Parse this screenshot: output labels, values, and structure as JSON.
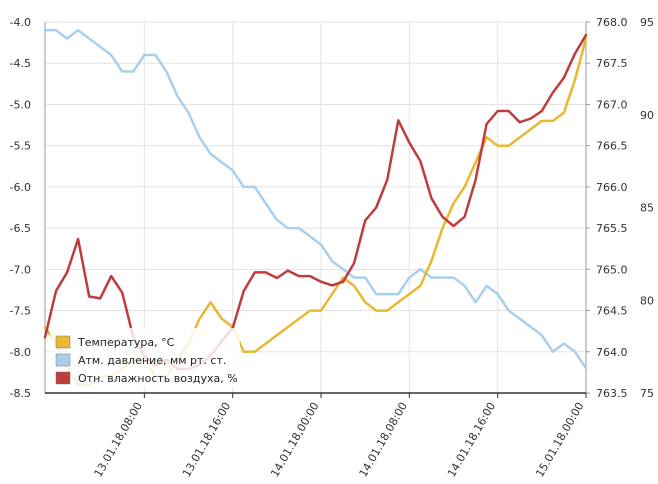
{
  "chart_data": {
    "type": "line",
    "title": "",
    "xlabel": "",
    "ylabel": "",
    "x_range": [
      "2018-01-12T23:00",
      "2018-01-15T00:00"
    ],
    "x_ticks": [
      {
        "t": "2018-01-13T08:00",
        "label": "13.01.18,08:00"
      },
      {
        "t": "2018-01-13T16:00",
        "label": "13.01.18,16:00"
      },
      {
        "t": "2018-01-14T00:00",
        "label": "14.01.18,00:00"
      },
      {
        "t": "2018-01-14T08:00",
        "label": "14.01.18,08:00"
      },
      {
        "t": "2018-01-14T16:00",
        "label": "14.01.18,16:00"
      },
      {
        "t": "2018-01-15T00:00",
        "label": "15.01.18,00:00"
      }
    ],
    "axes": {
      "temperature": {
        "side": "left",
        "ylim": [
          -8.5,
          -4.0
        ],
        "ticks": [
          "-4.0",
          "-4.5",
          "-5.0",
          "-5.5",
          "-6.0",
          "-6.5",
          "-7.0",
          "-7.5",
          "-8.0",
          "-8.5"
        ]
      },
      "pressure": {
        "side": "right-inner",
        "ylim": [
          763.5,
          768.0
        ],
        "ticks": [
          "768.0",
          "767.5",
          "767.0",
          "766.5",
          "766.0",
          "765.5",
          "765.0",
          "764.5",
          "764.0",
          "763.5"
        ]
      },
      "humidity": {
        "side": "right-outer",
        "ylim": [
          75,
          95
        ],
        "ticks": [
          "95",
          "90",
          "85",
          "80",
          "75"
        ]
      }
    },
    "grid": true,
    "legend_position": "bottom-left",
    "series": [
      {
        "key": "temperature",
        "name": "Температура, °C",
        "color": "#e8b830",
        "axis": "temperature",
        "points": [
          [
            "2018-01-12T23:00",
            -7.7
          ],
          [
            "2018-01-13T00:00",
            -7.9
          ],
          [
            "2018-01-13T01:00",
            -8.2
          ],
          [
            "2018-01-13T02:00",
            -8.4
          ],
          [
            "2018-01-13T03:00",
            -8.4
          ],
          [
            "2018-01-13T04:00",
            -8.3
          ],
          [
            "2018-01-13T05:00",
            -8.3
          ],
          [
            "2018-01-13T06:00",
            -8.2
          ],
          [
            "2018-01-13T07:00",
            -8.1
          ],
          [
            "2018-01-13T08:00",
            -8.1
          ],
          [
            "2018-01-13T09:00",
            -8.3
          ],
          [
            "2018-01-13T10:00",
            -8.3
          ],
          [
            "2018-01-13T11:00",
            -8.1
          ],
          [
            "2018-01-13T12:00",
            -7.9
          ],
          [
            "2018-01-13T13:00",
            -7.6
          ],
          [
            "2018-01-13T14:00",
            -7.4
          ],
          [
            "2018-01-13T15:00",
            -7.6
          ],
          [
            "2018-01-13T16:00",
            -7.7
          ],
          [
            "2018-01-13T17:00",
            -8.0
          ],
          [
            "2018-01-13T18:00",
            -8.0
          ],
          [
            "2018-01-13T19:00",
            -7.9
          ],
          [
            "2018-01-13T20:00",
            -7.8
          ],
          [
            "2018-01-13T21:00",
            -7.7
          ],
          [
            "2018-01-13T22:00",
            -7.6
          ],
          [
            "2018-01-13T23:00",
            -7.5
          ],
          [
            "2018-01-14T00:00",
            -7.5
          ],
          [
            "2018-01-14T01:00",
            -7.3
          ],
          [
            "2018-01-14T02:00",
            -7.1
          ],
          [
            "2018-01-14T03:00",
            -7.2
          ],
          [
            "2018-01-14T04:00",
            -7.4
          ],
          [
            "2018-01-14T05:00",
            -7.5
          ],
          [
            "2018-01-14T06:00",
            -7.5
          ],
          [
            "2018-01-14T07:00",
            -7.4
          ],
          [
            "2018-01-14T08:00",
            -7.3
          ],
          [
            "2018-01-14T09:00",
            -7.2
          ],
          [
            "2018-01-14T10:00",
            -6.9
          ],
          [
            "2018-01-14T11:00",
            -6.5
          ],
          [
            "2018-01-14T12:00",
            -6.2
          ],
          [
            "2018-01-14T13:00",
            -6.0
          ],
          [
            "2018-01-14T14:00",
            -5.7
          ],
          [
            "2018-01-14T15:00",
            -5.4
          ],
          [
            "2018-01-14T16:00",
            -5.5
          ],
          [
            "2018-01-14T17:00",
            -5.5
          ],
          [
            "2018-01-14T18:00",
            -5.4
          ],
          [
            "2018-01-14T19:00",
            -5.3
          ],
          [
            "2018-01-14T20:00",
            -5.2
          ],
          [
            "2018-01-14T21:00",
            -5.2
          ],
          [
            "2018-01-14T22:00",
            -5.1
          ],
          [
            "2018-01-14T23:00",
            -4.7
          ],
          [
            "2018-01-15T00:00",
            -4.2
          ]
        ]
      },
      {
        "key": "pressure",
        "name": "Атм. давление, мм рт. ст.",
        "color": "#a8d0ec",
        "axis": "pressure",
        "points": [
          [
            "2018-01-12T23:00",
            767.9
          ],
          [
            "2018-01-13T00:00",
            767.9
          ],
          [
            "2018-01-13T01:00",
            767.8
          ],
          [
            "2018-01-13T02:00",
            767.9
          ],
          [
            "2018-01-13T03:00",
            767.8
          ],
          [
            "2018-01-13T04:00",
            767.7
          ],
          [
            "2018-01-13T05:00",
            767.6
          ],
          [
            "2018-01-13T06:00",
            767.4
          ],
          [
            "2018-01-13T07:00",
            767.4
          ],
          [
            "2018-01-13T08:00",
            767.6
          ],
          [
            "2018-01-13T09:00",
            767.6
          ],
          [
            "2018-01-13T10:00",
            767.4
          ],
          [
            "2018-01-13T11:00",
            767.1
          ],
          [
            "2018-01-13T12:00",
            766.9
          ],
          [
            "2018-01-13T13:00",
            766.6
          ],
          [
            "2018-01-13T14:00",
            766.4
          ],
          [
            "2018-01-13T15:00",
            766.3
          ],
          [
            "2018-01-13T16:00",
            766.2
          ],
          [
            "2018-01-13T17:00",
            766.0
          ],
          [
            "2018-01-13T18:00",
            766.0
          ],
          [
            "2018-01-13T19:00",
            765.8
          ],
          [
            "2018-01-13T20:00",
            765.6
          ],
          [
            "2018-01-13T21:00",
            765.5
          ],
          [
            "2018-01-13T22:00",
            765.5
          ],
          [
            "2018-01-13T23:00",
            765.4
          ],
          [
            "2018-01-14T00:00",
            765.3
          ],
          [
            "2018-01-14T01:00",
            765.1
          ],
          [
            "2018-01-14T02:00",
            765.0
          ],
          [
            "2018-01-14T03:00",
            764.9
          ],
          [
            "2018-01-14T04:00",
            764.9
          ],
          [
            "2018-01-14T05:00",
            764.7
          ],
          [
            "2018-01-14T06:00",
            764.7
          ],
          [
            "2018-01-14T07:00",
            764.7
          ],
          [
            "2018-01-14T08:00",
            764.9
          ],
          [
            "2018-01-14T09:00",
            765.0
          ],
          [
            "2018-01-14T10:00",
            764.9
          ],
          [
            "2018-01-14T11:00",
            764.9
          ],
          [
            "2018-01-14T12:00",
            764.9
          ],
          [
            "2018-01-14T13:00",
            764.8
          ],
          [
            "2018-01-14T14:00",
            764.6
          ],
          [
            "2018-01-14T15:00",
            764.8
          ],
          [
            "2018-01-14T16:00",
            764.7
          ],
          [
            "2018-01-14T17:00",
            764.5
          ],
          [
            "2018-01-14T18:00",
            764.4
          ],
          [
            "2018-01-14T19:00",
            764.3
          ],
          [
            "2018-01-14T20:00",
            764.2
          ],
          [
            "2018-01-14T21:00",
            764.0
          ],
          [
            "2018-01-14T22:00",
            764.1
          ],
          [
            "2018-01-14T23:00",
            764.0
          ],
          [
            "2018-01-15T00:00",
            763.8
          ]
        ]
      },
      {
        "key": "humidity",
        "name": "Отн. влажность воздуха, %",
        "color": "#c03b3b",
        "axis": "humidity",
        "points": [
          [
            "2018-01-12T23:00",
            78.0
          ],
          [
            "2018-01-13T00:00",
            80.5
          ],
          [
            "2018-01-13T01:00",
            81.5
          ],
          [
            "2018-01-13T02:00",
            83.3
          ],
          [
            "2018-01-13T03:00",
            80.2
          ],
          [
            "2018-01-13T04:00",
            80.1
          ],
          [
            "2018-01-13T05:00",
            81.3
          ],
          [
            "2018-01-13T06:00",
            80.4
          ],
          [
            "2018-01-13T07:00",
            78.0
          ],
          [
            "2018-01-13T08:00",
            77.0
          ],
          [
            "2018-01-13T09:00",
            76.5
          ],
          [
            "2018-01-13T10:00",
            76.8
          ],
          [
            "2018-01-13T11:00",
            76.3
          ],
          [
            "2018-01-13T12:00",
            76.3
          ],
          [
            "2018-01-13T13:00",
            76.5
          ],
          [
            "2018-01-13T14:00",
            77.0
          ],
          [
            "2018-01-13T15:00",
            77.8
          ],
          [
            "2018-01-13T16:00",
            78.5
          ],
          [
            "2018-01-13T17:00",
            80.5
          ],
          [
            "2018-01-13T18:00",
            81.5
          ],
          [
            "2018-01-13T19:00",
            81.5
          ],
          [
            "2018-01-13T20:00",
            81.2
          ],
          [
            "2018-01-13T21:00",
            81.6
          ],
          [
            "2018-01-13T22:00",
            81.3
          ],
          [
            "2018-01-13T23:00",
            81.3
          ],
          [
            "2018-01-14T00:00",
            81.0
          ],
          [
            "2018-01-14T01:00",
            80.8
          ],
          [
            "2018-01-14T02:00",
            81.0
          ],
          [
            "2018-01-14T03:00",
            82.0
          ],
          [
            "2018-01-14T04:00",
            84.3
          ],
          [
            "2018-01-14T05:00",
            85.0
          ],
          [
            "2018-01-14T06:00",
            86.5
          ],
          [
            "2018-01-14T07:00",
            89.7
          ],
          [
            "2018-01-14T08:00",
            88.5
          ],
          [
            "2018-01-14T09:00",
            87.5
          ],
          [
            "2018-01-14T10:00",
            85.5
          ],
          [
            "2018-01-14T11:00",
            84.5
          ],
          [
            "2018-01-14T12:00",
            84.0
          ],
          [
            "2018-01-14T13:00",
            84.5
          ],
          [
            "2018-01-14T14:00",
            86.5
          ],
          [
            "2018-01-14T15:00",
            89.5
          ],
          [
            "2018-01-14T16:00",
            90.2
          ],
          [
            "2018-01-14T17:00",
            90.2
          ],
          [
            "2018-01-14T18:00",
            89.6
          ],
          [
            "2018-01-14T19:00",
            89.8
          ],
          [
            "2018-01-14T20:00",
            90.2
          ],
          [
            "2018-01-14T21:00",
            91.2
          ],
          [
            "2018-01-14T22:00",
            92.0
          ],
          [
            "2018-01-14T23:00",
            93.3
          ],
          [
            "2018-01-15T00:00",
            94.3
          ]
        ]
      }
    ]
  }
}
